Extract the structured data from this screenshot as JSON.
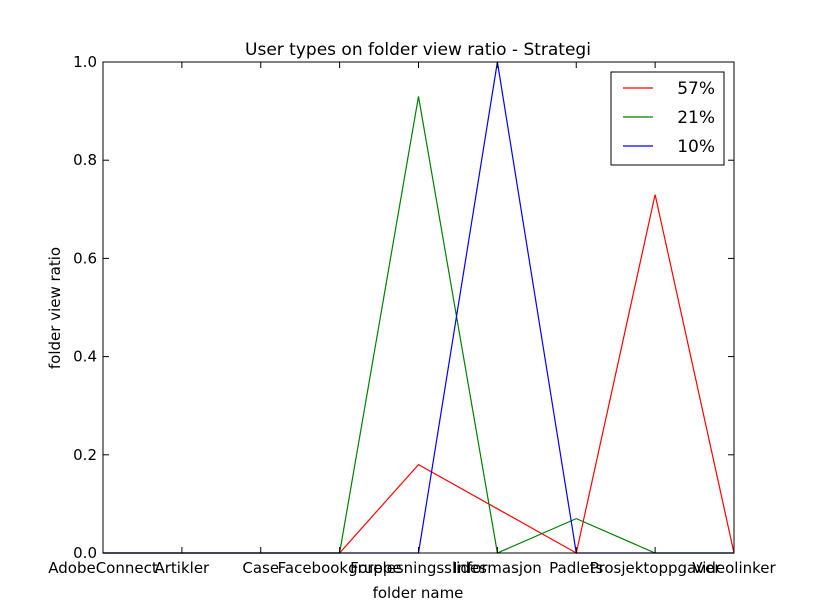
{
  "chart_data": {
    "type": "line",
    "title": "User types on folder view ratio - Strategi",
    "xlabel": "folder name",
    "ylabel": "folder view ratio",
    "categories": [
      "AdobeConnect",
      "Artikler",
      "Case",
      "Facebookgruppe",
      "Forelesningsslides",
      "Informasjon",
      "Padlets",
      "Prosjektoppgaver",
      "Videolinker"
    ],
    "ylim": [
      0,
      1.0
    ],
    "yticks": [
      0.0,
      0.2,
      0.4,
      0.6,
      0.8,
      1.0
    ],
    "ytick_labels": [
      "0.0",
      "0.2",
      "0.4",
      "0.6",
      "0.8",
      "1.0"
    ],
    "grid": false,
    "legend_position": "top-right",
    "series": [
      {
        "name": "57%",
        "color": "#ff0000",
        "values": [
          0,
          0,
          0,
          0,
          0.18,
          0.09,
          0,
          0.73,
          0
        ]
      },
      {
        "name": "21%",
        "color": "#008000",
        "values": [
          0,
          0,
          0,
          0,
          0.93,
          0,
          0.07,
          0,
          0
        ]
      },
      {
        "name": "10%",
        "color": "#0000ff",
        "values": [
          0,
          0,
          0,
          0,
          0,
          1.0,
          0,
          0,
          0
        ]
      }
    ]
  }
}
